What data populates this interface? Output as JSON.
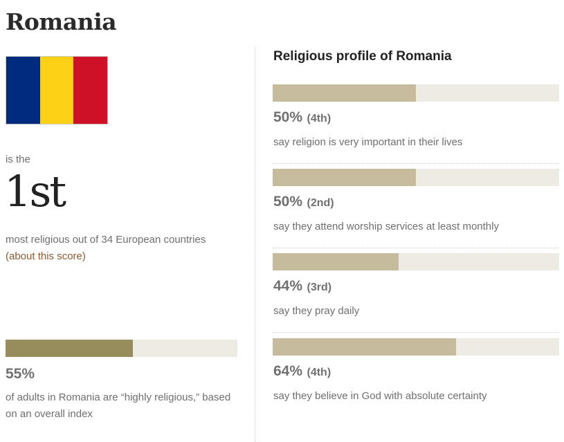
{
  "country": {
    "name": "Romania",
    "flag_colors": [
      "#002B7F",
      "#FCD116",
      "#CE1126"
    ]
  },
  "ranking": {
    "prefix": "is the",
    "rank": "1st",
    "description": "most religious out of 34 European countries",
    "link": "(about this score)"
  },
  "overall_index": {
    "value": 55,
    "value_label": "55%",
    "description": "of adults in Romania are “highly religious,” based on an overall index",
    "color": "#978d5c"
  },
  "profile": {
    "heading": "Religious profile of Romania",
    "bar_color": "#c6bc9d",
    "track_color": "#edebe4",
    "items": [
      {
        "value": 50,
        "value_label": "50%",
        "rank": "(4th)",
        "description": "say religion is very important in their lives"
      },
      {
        "value": 50,
        "value_label": "50%",
        "rank": "(2nd)",
        "description": "say they attend worship services at least monthly"
      },
      {
        "value": 44,
        "value_label": "44%",
        "rank": "(3rd)",
        "description": "say they pray daily"
      },
      {
        "value": 64,
        "value_label": "64%",
        "rank": "(4th)",
        "description": "say they believe in God with absolute certainty"
      }
    ]
  }
}
